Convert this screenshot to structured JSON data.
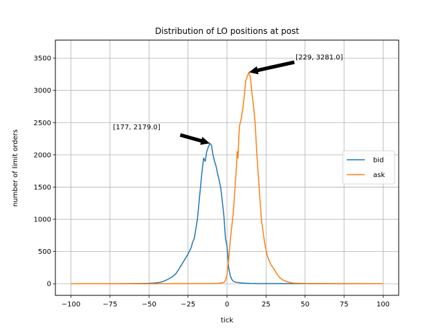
{
  "chart_data": {
    "type": "line",
    "title": "Distribution of LO positions at post",
    "xlabel": "tick",
    "ylabel": "number of limit orders",
    "xlim": [
      -110,
      110
    ],
    "ylim": [
      -180,
      3780
    ],
    "xticks": [
      -100,
      -75,
      -50,
      -25,
      0,
      25,
      50,
      75,
      100
    ],
    "xtick_labels": [
      "−100",
      "−75",
      "−50",
      "−25",
      "0",
      "25",
      "50",
      "75",
      "100"
    ],
    "yticks": [
      0,
      500,
      1000,
      1500,
      2000,
      2500,
      3000,
      3500
    ],
    "ytick_labels": [
      "0",
      "500",
      "1000",
      "1500",
      "2000",
      "2500",
      "3000",
      "3500"
    ],
    "grid": true,
    "legend_position": "center-right",
    "series": [
      {
        "name": "bid",
        "color": "#1f77b4",
        "points": [
          [
            -100,
            0
          ],
          [
            -90,
            0
          ],
          [
            -80,
            0
          ],
          [
            -70,
            1
          ],
          [
            -60,
            2
          ],
          [
            -55,
            4
          ],
          [
            -50,
            6
          ],
          [
            -47,
            10
          ],
          [
            -45,
            15
          ],
          [
            -43,
            22
          ],
          [
            -41,
            35
          ],
          [
            -39,
            55
          ],
          [
            -37,
            80
          ],
          [
            -35,
            110
          ],
          [
            -33,
            150
          ],
          [
            -31,
            220
          ],
          [
            -29,
            300
          ],
          [
            -27,
            380
          ],
          [
            -25,
            460
          ],
          [
            -23,
            560
          ],
          [
            -22,
            650
          ],
          [
            -21,
            700
          ],
          [
            -20,
            850
          ],
          [
            -19,
            1000
          ],
          [
            -18,
            1250
          ],
          [
            -17,
            1500
          ],
          [
            -16,
            1750
          ],
          [
            -15,
            1950
          ],
          [
            -14,
            1900
          ],
          [
            -13,
            2050
          ],
          [
            -12,
            2120
          ],
          [
            -11,
            2179
          ],
          [
            -10,
            2150
          ],
          [
            -9,
            2000
          ],
          [
            -8,
            1900
          ],
          [
            -7,
            1820
          ],
          [
            -6,
            1700
          ],
          [
            -5,
            1600
          ],
          [
            -4,
            1480
          ],
          [
            -3,
            1270
          ],
          [
            -2,
            1050
          ],
          [
            -1,
            700
          ],
          [
            0,
            580
          ],
          [
            1,
            260
          ],
          [
            2,
            130
          ],
          [
            3,
            70
          ],
          [
            4,
            40
          ],
          [
            5,
            28
          ],
          [
            7,
            18
          ],
          [
            10,
            10
          ],
          [
            15,
            5
          ],
          [
            20,
            3
          ],
          [
            30,
            2
          ],
          [
            50,
            1
          ],
          [
            75,
            0
          ],
          [
            100,
            0
          ]
        ]
      },
      {
        "name": "ask",
        "color": "#ff7f0e",
        "points": [
          [
            -100,
            0
          ],
          [
            -75,
            0
          ],
          [
            -50,
            0
          ],
          [
            -30,
            1
          ],
          [
            -20,
            2
          ],
          [
            -10,
            3
          ],
          [
            -5,
            8
          ],
          [
            -2,
            20
          ],
          [
            -1,
            50
          ],
          [
            0,
            140
          ],
          [
            1,
            370
          ],
          [
            2,
            650
          ],
          [
            3,
            880
          ],
          [
            4,
            1100
          ],
          [
            5,
            1450
          ],
          [
            6,
            1800
          ],
          [
            6.5,
            2050
          ],
          [
            7,
            1950
          ],
          [
            7.5,
            2250
          ],
          [
            8,
            2450
          ],
          [
            9,
            2550
          ],
          [
            10,
            2700
          ],
          [
            11,
            2900
          ],
          [
            12,
            3150
          ],
          [
            13,
            3220
          ],
          [
            14,
            3281
          ],
          [
            15,
            3200
          ],
          [
            16,
            2950
          ],
          [
            17,
            2750
          ],
          [
            18,
            2500
          ],
          [
            19,
            2050
          ],
          [
            20,
            1700
          ],
          [
            21,
            1350
          ],
          [
            22,
            1000
          ],
          [
            23,
            820
          ],
          [
            24,
            650
          ],
          [
            25,
            520
          ],
          [
            26,
            420
          ],
          [
            27,
            360
          ],
          [
            28,
            300
          ],
          [
            30,
            230
          ],
          [
            32,
            150
          ],
          [
            34,
            90
          ],
          [
            36,
            55
          ],
          [
            38,
            35
          ],
          [
            40,
            22
          ],
          [
            42,
            12
          ],
          [
            45,
            8
          ],
          [
            50,
            4
          ],
          [
            60,
            2
          ],
          [
            75,
            1
          ],
          [
            100,
            0
          ]
        ]
      }
    ],
    "annotations": [
      {
        "label": "[177, 2179.0]",
        "text_at": [
          -73,
          2395
        ],
        "arrow_to": [
          -11,
          2179
        ]
      },
      {
        "label": "[229, 3281.0]",
        "text_at": [
          44,
          3480
        ],
        "arrow_to": [
          14,
          3281
        ]
      }
    ]
  }
}
